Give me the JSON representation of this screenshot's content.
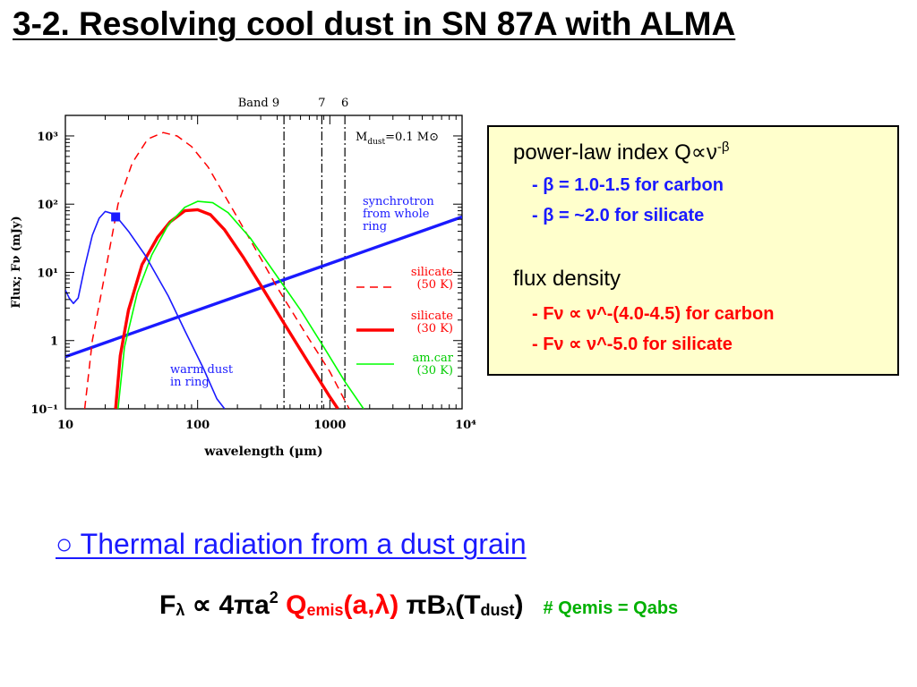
{
  "slide_title": "3-2. Resolving cool dust in SN 87A with ALMA",
  "info_box": {
    "heading1": "power-law index Q∝ν",
    "heading1_exp": "-β",
    "line1": "- β = 1.0-1.5 for carbon",
    "line2": "- β = ~2.0 for silicate",
    "heading2": "flux density",
    "line3": "- Fν ∝ ν^-(4.0-4.5) for carbon",
    "line4": "- Fν ∝ ν^-5.0 for silicate"
  },
  "subheading": "○ Thermal radiation from a dust grain",
  "equation": {
    "f": "F",
    "f_sub": "λ",
    "prop": " ∝ 4πa",
    "exp2": "2",
    "q": "Q",
    "q_sub": "emis",
    "q_args": "(a,λ)",
    "pib": " πB",
    "b_sub": "λ",
    "t_open": "(T",
    "t_sub": "dust",
    "t_close": ")",
    "note": "# Qemis = Qabs"
  },
  "colors": {
    "blue": "#1a1aff",
    "red": "#ff0000",
    "green": "#00ff00",
    "box_bg": "#ffffcc",
    "note_green": "#00b000"
  },
  "chart_data": {
    "type": "line",
    "xscale": "log",
    "yscale": "log",
    "xlim": [
      10,
      10000
    ],
    "ylim": [
      0.1,
      2000
    ],
    "xlabel": "wavelength (μm)",
    "ylabel": "Flux; Fν (mJy)",
    "xticks": [
      "10",
      "100",
      "1000",
      "10⁴"
    ],
    "yticks": [
      "10⁻¹",
      "1",
      "10¹",
      "10²",
      "10³"
    ],
    "top_label": "Band 9",
    "band_markers": [
      {
        "label": "9",
        "x": 450
      },
      {
        "label": "7",
        "x": 870
      },
      {
        "label": "6",
        "x": 1300
      }
    ],
    "mass_label": "M",
    "mass_sub": "dust",
    "mass_value": "=0.1 M⊙",
    "series": [
      {
        "name": "synchrotron from whole ring",
        "label_lines": [
          "synchrotron",
          "from  whole",
          "ring"
        ],
        "color": "#1a1aff",
        "style": "solid-thick",
        "points": [
          [
            10,
            0.58
          ],
          [
            10000,
            65
          ]
        ]
      },
      {
        "name": "silicate (50 K)",
        "label_lines": [
          "silicate",
          "(50 K)"
        ],
        "color": "#ff0000",
        "style": "dashed",
        "points": [
          [
            14,
            0.1
          ],
          [
            16,
            1
          ],
          [
            20,
            10
          ],
          [
            25,
            100
          ],
          [
            32,
            400
          ],
          [
            42,
            900
          ],
          [
            55,
            1120
          ],
          [
            70,
            1000
          ],
          [
            90,
            700
          ],
          [
            120,
            350
          ],
          [
            170,
            110
          ],
          [
            250,
            30
          ],
          [
            400,
            6
          ],
          [
            650,
            1.3
          ],
          [
            1000,
            0.35
          ],
          [
            1400,
            0.1
          ]
        ]
      },
      {
        "name": "silicate (30 K)",
        "label_lines": [
          "silicate",
          "(30 K)"
        ],
        "color": "#ff0000",
        "style": "solid-thick",
        "points": [
          [
            24,
            0.1
          ],
          [
            26,
            0.6
          ],
          [
            30,
            2.8
          ],
          [
            38,
            13
          ],
          [
            50,
            33
          ],
          [
            62,
            55
          ],
          [
            80,
            80
          ],
          [
            100,
            83
          ],
          [
            125,
            70
          ],
          [
            160,
            42
          ],
          [
            220,
            17
          ],
          [
            300,
            6.5
          ],
          [
            450,
            1.8
          ],
          [
            700,
            0.45
          ],
          [
            1000,
            0.15
          ],
          [
            1150,
            0.1
          ]
        ]
      },
      {
        "name": "am.car (30 K)",
        "label_lines": [
          "am.car",
          "(30 K)"
        ],
        "color": "#00ff00",
        "style": "solid",
        "points": [
          [
            25,
            0.1
          ],
          [
            28,
            0.8
          ],
          [
            35,
            5
          ],
          [
            45,
            18
          ],
          [
            60,
            50
          ],
          [
            80,
            90
          ],
          [
            100,
            110
          ],
          [
            130,
            105
          ],
          [
            170,
            75
          ],
          [
            250,
            32
          ],
          [
            380,
            10
          ],
          [
            600,
            2.8
          ],
          [
            900,
            0.8
          ],
          [
            1300,
            0.25
          ],
          [
            1800,
            0.1
          ]
        ]
      },
      {
        "name": "warm dust in ring",
        "label_lines": [
          "warm dust",
          "in ring"
        ],
        "color": "#1a1aff",
        "style": "solid",
        "points": [
          [
            10,
            5.5
          ],
          [
            10.7,
            4.2
          ],
          [
            11.5,
            3.5
          ],
          [
            12.5,
            4.2
          ],
          [
            14,
            12
          ],
          [
            16,
            35
          ],
          [
            18,
            62
          ],
          [
            20,
            78
          ],
          [
            22,
            74
          ],
          [
            24,
            68
          ],
          [
            30,
            40
          ],
          [
            40,
            18
          ],
          [
            60,
            4.5
          ],
          [
            80,
            1.4
          ],
          [
            110,
            0.4
          ],
          [
            140,
            0.14
          ],
          [
            160,
            0.1
          ]
        ]
      }
    ],
    "data_marker": {
      "x": 24,
      "y": 65,
      "shape": "square"
    }
  }
}
